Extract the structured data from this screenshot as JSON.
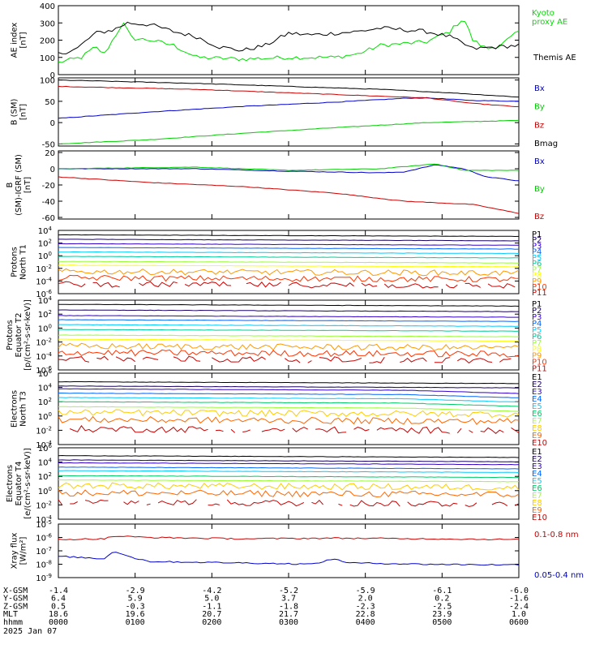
{
  "chart_data": [
    {
      "type": "line",
      "ylabel": "AE index [nT]",
      "ylim": [
        0,
        400
      ],
      "yticks": [
        "400",
        "300",
        "200",
        "100",
        "0"
      ],
      "legend_placement": "right",
      "series": [
        {
          "name": "Kyoto proxy AE",
          "color": "#00dd00",
          "anchors": [
            [
              0,
              70
            ],
            [
              0.05,
              100
            ],
            [
              0.08,
              160
            ],
            [
              0.1,
              120
            ],
            [
              0.14,
              300
            ],
            [
              0.16,
              210
            ],
            [
              0.2,
              200
            ],
            [
              0.25,
              170
            ],
            [
              0.3,
              100
            ],
            [
              0.4,
              90
            ],
            [
              0.5,
              100
            ],
            [
              0.6,
              100
            ],
            [
              0.65,
              120
            ],
            [
              0.7,
              170
            ],
            [
              0.75,
              180
            ],
            [
              0.8,
              190
            ],
            [
              0.85,
              250
            ],
            [
              0.88,
              330
            ],
            [
              0.9,
              200
            ],
            [
              0.93,
              150
            ],
            [
              0.96,
              170
            ],
            [
              1,
              250
            ]
          ]
        },
        {
          "name": "Themis AE",
          "color": "#000000",
          "anchors": [
            [
              0,
              120
            ],
            [
              0.04,
              150
            ],
            [
              0.08,
              240
            ],
            [
              0.12,
              260
            ],
            [
              0.15,
              300
            ],
            [
              0.2,
              290
            ],
            [
              0.25,
              250
            ],
            [
              0.3,
              220
            ],
            [
              0.35,
              160
            ],
            [
              0.4,
              140
            ],
            [
              0.45,
              170
            ],
            [
              0.5,
              240
            ],
            [
              0.55,
              230
            ],
            [
              0.6,
              240
            ],
            [
              0.65,
              250
            ],
            [
              0.7,
              270
            ],
            [
              0.75,
              260
            ],
            [
              0.8,
              250
            ],
            [
              0.85,
              220
            ],
            [
              0.9,
              150
            ],
            [
              0.95,
              160
            ],
            [
              1,
              170
            ]
          ]
        }
      ]
    },
    {
      "type": "line",
      "ylabel": "B (SM) [nT]",
      "ylim": [
        -55,
        105
      ],
      "yticks": [
        "100",
        "50",
        "0",
        "-50"
      ],
      "legend_placement": "right",
      "series": [
        {
          "name": "Bx",
          "color": "#0000cc",
          "anchors": [
            [
              0,
              10
            ],
            [
              0.2,
              25
            ],
            [
              0.4,
              38
            ],
            [
              0.6,
              48
            ],
            [
              0.75,
              57
            ],
            [
              0.8,
              58
            ],
            [
              0.9,
              52
            ],
            [
              1,
              50
            ]
          ]
        },
        {
          "name": "By",
          "color": "#00cc00",
          "anchors": [
            [
              0,
              -50
            ],
            [
              0.2,
              -40
            ],
            [
              0.4,
              -25
            ],
            [
              0.6,
              -12
            ],
            [
              0.8,
              0
            ],
            [
              1,
              5
            ]
          ]
        },
        {
          "name": "Bz",
          "color": "#cc0000",
          "anchors": [
            [
              0,
              85
            ],
            [
              0.3,
              78
            ],
            [
              0.5,
              70
            ],
            [
              0.7,
              62
            ],
            [
              0.8,
              58
            ],
            [
              0.9,
              45
            ],
            [
              1,
              37
            ]
          ]
        },
        {
          "name": "Bmag",
          "color": "#000000",
          "anchors": [
            [
              0,
              100
            ],
            [
              0.3,
              92
            ],
            [
              0.5,
              85
            ],
            [
              0.7,
              78
            ],
            [
              0.85,
              70
            ],
            [
              1,
              60
            ]
          ]
        }
      ]
    },
    {
      "type": "line",
      "ylabel": "B (SM)-IGRF (SM) [nT]",
      "ylim": [
        -62,
        22
      ],
      "yticks": [
        "20",
        "0",
        "-20",
        "-40",
        "-60"
      ],
      "legend_placement": "right",
      "series": [
        {
          "name": "Bx",
          "color": "#0000cc",
          "anchors": [
            [
              0,
              0
            ],
            [
              0.3,
              0
            ],
            [
              0.5,
              -3
            ],
            [
              0.7,
              -5
            ],
            [
              0.75,
              -4
            ],
            [
              0.82,
              5
            ],
            [
              0.88,
              0
            ],
            [
              0.93,
              -10
            ],
            [
              1,
              -15
            ]
          ]
        },
        {
          "name": "By",
          "color": "#00cc00",
          "anchors": [
            [
              0,
              0
            ],
            [
              0.3,
              2
            ],
            [
              0.5,
              -2
            ],
            [
              0.7,
              0
            ],
            [
              0.82,
              6
            ],
            [
              0.88,
              -2
            ],
            [
              1,
              -2
            ]
          ]
        },
        {
          "name": "Bz",
          "color": "#cc0000",
          "anchors": [
            [
              0,
              -10
            ],
            [
              0.2,
              -17
            ],
            [
              0.4,
              -22
            ],
            [
              0.6,
              -30
            ],
            [
              0.75,
              -40
            ],
            [
              0.9,
              -44
            ],
            [
              1,
              -55
            ]
          ]
        }
      ]
    },
    {
      "type": "line",
      "ylabel": "Protons North T1",
      "ylog": true,
      "ylim": [
        1e-06,
        10000.0
      ],
      "yticks": [
        "10^4",
        "10^2",
        "10^0",
        "10^-2",
        "10^-4",
        "10^-6"
      ],
      "legend_placement": "right",
      "labels": [
        "P1",
        "P2",
        "P3",
        "P4",
        "P5",
        "P6",
        "P7",
        "P8",
        "P9",
        "P10",
        "P11"
      ],
      "levels": [
        3.3,
        2.6,
        1.9,
        1.3,
        0.6,
        -0.1,
        -0.9,
        -1.5,
        -2.5,
        -3.5,
        -4.5
      ],
      "colors": [
        "#000000",
        "#1a0066",
        "#3300cc",
        "#0066ff",
        "#00ccff",
        "#00cc99",
        "#99ff33",
        "#ffff00",
        "#ff9900",
        "#ff3300",
        "#cc0000"
      ]
    },
    {
      "type": "line",
      "ylabel": "Protons Equator T2 [p/(cm^2-s-sr-keV)]",
      "ylog": true,
      "ylim": [
        1e-06,
        10000.0
      ],
      "yticks": [
        "10^4",
        "10^2",
        "10^0",
        "10^-2",
        "10^-4",
        "10^-6"
      ],
      "legend_placement": "right",
      "labels": [
        "P1",
        "P2",
        "P3",
        "P4",
        "P5",
        "P6",
        "P7",
        "P8",
        "P9",
        "P10",
        "P11"
      ],
      "levels": [
        3.4,
        2.6,
        1.8,
        1.2,
        0.5,
        -0.2,
        -1.0,
        -1.6,
        -2.6,
        -3.5,
        -4.4
      ],
      "colors": [
        "#000000",
        "#1a0066",
        "#3300cc",
        "#0066ff",
        "#00ccff",
        "#00cc99",
        "#99ff33",
        "#ffff00",
        "#ff9900",
        "#ff3300",
        "#cc0000"
      ]
    },
    {
      "type": "line",
      "ylabel": "Electrons North T3",
      "ylog": true,
      "ylim": [
        0.0001,
        1000000.0
      ],
      "yticks": [
        "10^6",
        "10^4",
        "10^2",
        "10^0",
        "10^-2",
        "10^-4"
      ],
      "legend_placement": "right",
      "labels": [
        "E1",
        "E2",
        "E3",
        "E4",
        "E5",
        "E6",
        "E7",
        "E8",
        "E9",
        "E10"
      ],
      "levels": [
        4.8,
        4.2,
        3.8,
        3.2,
        2.6,
        2.0,
        1.3,
        0.5,
        -0.5,
        -1.8
      ],
      "colors": [
        "#000000",
        "#1a0066",
        "#3300cc",
        "#0066ff",
        "#00ccff",
        "#00cc66",
        "#99ff33",
        "#ffcc00",
        "#ff6600",
        "#cc0000"
      ]
    },
    {
      "type": "line",
      "ylabel": "Electrons Equator T4 [e/(cm^2-s-sr-keV)]",
      "ylog": true,
      "ylim": [
        0.0001,
        1000000.0
      ],
      "yticks": [
        "10^6",
        "10^4",
        "10^2",
        "10^0",
        "10^-2",
        "10^-4"
      ],
      "legend_placement": "right",
      "labels": [
        "E1",
        "E2",
        "E3",
        "E4",
        "E5",
        "E6",
        "E7",
        "E8",
        "E9",
        "E10"
      ],
      "levels": [
        4.9,
        4.3,
        3.9,
        3.3,
        2.8,
        2.1,
        1.5,
        0.7,
        -0.3,
        -1.6
      ],
      "colors": [
        "#000000",
        "#1a0066",
        "#3300cc",
        "#0066ff",
        "#00ccff",
        "#00cc66",
        "#99ff33",
        "#ffcc00",
        "#ff6600",
        "#cc0000"
      ]
    },
    {
      "type": "line",
      "ylabel": "Xray flux [W/m^2]",
      "ylog": true,
      "ylim": [
        1e-09,
        1e-05
      ],
      "yticks": [
        "10^-5",
        "10^-6",
        "10^-7",
        "10^-8",
        "10^-9"
      ],
      "legend_placement": "right",
      "series": [
        {
          "name": "0.1-0.8 nm",
          "color": "#cc0000",
          "anchors": [
            [
              0,
              -6.15
            ],
            [
              0.1,
              -6.1
            ],
            [
              0.12,
              -5.9
            ],
            [
              0.2,
              -6.0
            ],
            [
              0.4,
              -6.1
            ],
            [
              0.6,
              -6.05
            ],
            [
              0.8,
              -6.1
            ],
            [
              1,
              -6.15
            ]
          ]
        },
        {
          "name": "0.05-0.4 nm",
          "color": "#0000cc",
          "anchors": [
            [
              0,
              -7.4
            ],
            [
              0.1,
              -7.6
            ],
            [
              0.12,
              -7.0
            ],
            [
              0.16,
              -7.5
            ],
            [
              0.2,
              -7.8
            ],
            [
              0.4,
              -7.9
            ],
            [
              0.55,
              -8.0
            ],
            [
              0.6,
              -7.6
            ],
            [
              0.63,
              -7.9
            ],
            [
              0.8,
              -8.0
            ],
            [
              1,
              -8.05
            ]
          ]
        }
      ]
    }
  ],
  "x_axis": {
    "row_labels": [
      "X-GSM",
      "Y-GSM",
      "Z-GSM",
      "MLT",
      "hhmm"
    ],
    "ticks": [
      {
        "hhmm": "0000",
        "x_gsm": "-1.4",
        "y_gsm": "6.4",
        "z_gsm": "0.5",
        "mlt": "18.6"
      },
      {
        "hhmm": "0100",
        "x_gsm": "-2.9",
        "y_gsm": "5.9",
        "z_gsm": "-0.3",
        "mlt": "19.6"
      },
      {
        "hhmm": "0200",
        "x_gsm": "-4.2",
        "y_gsm": "5.0",
        "z_gsm": "-1.1",
        "mlt": "20.7"
      },
      {
        "hhmm": "0300",
        "x_gsm": "-5.2",
        "y_gsm": "3.7",
        "z_gsm": "-1.8",
        "mlt": "21.7"
      },
      {
        "hhmm": "0400",
        "x_gsm": "-5.9",
        "y_gsm": "2.0",
        "z_gsm": "-2.3",
        "mlt": "22.8"
      },
      {
        "hhmm": "0500",
        "x_gsm": "-6.1",
        "y_gsm": "0.2",
        "z_gsm": "-2.5",
        "mlt": "23.9"
      },
      {
        "hhmm": "0600",
        "x_gsm": "-6.0",
        "y_gsm": "-1.6",
        "z_gsm": "-2.4",
        "mlt": "1.0"
      }
    ],
    "date": "2025 Jan 07"
  }
}
